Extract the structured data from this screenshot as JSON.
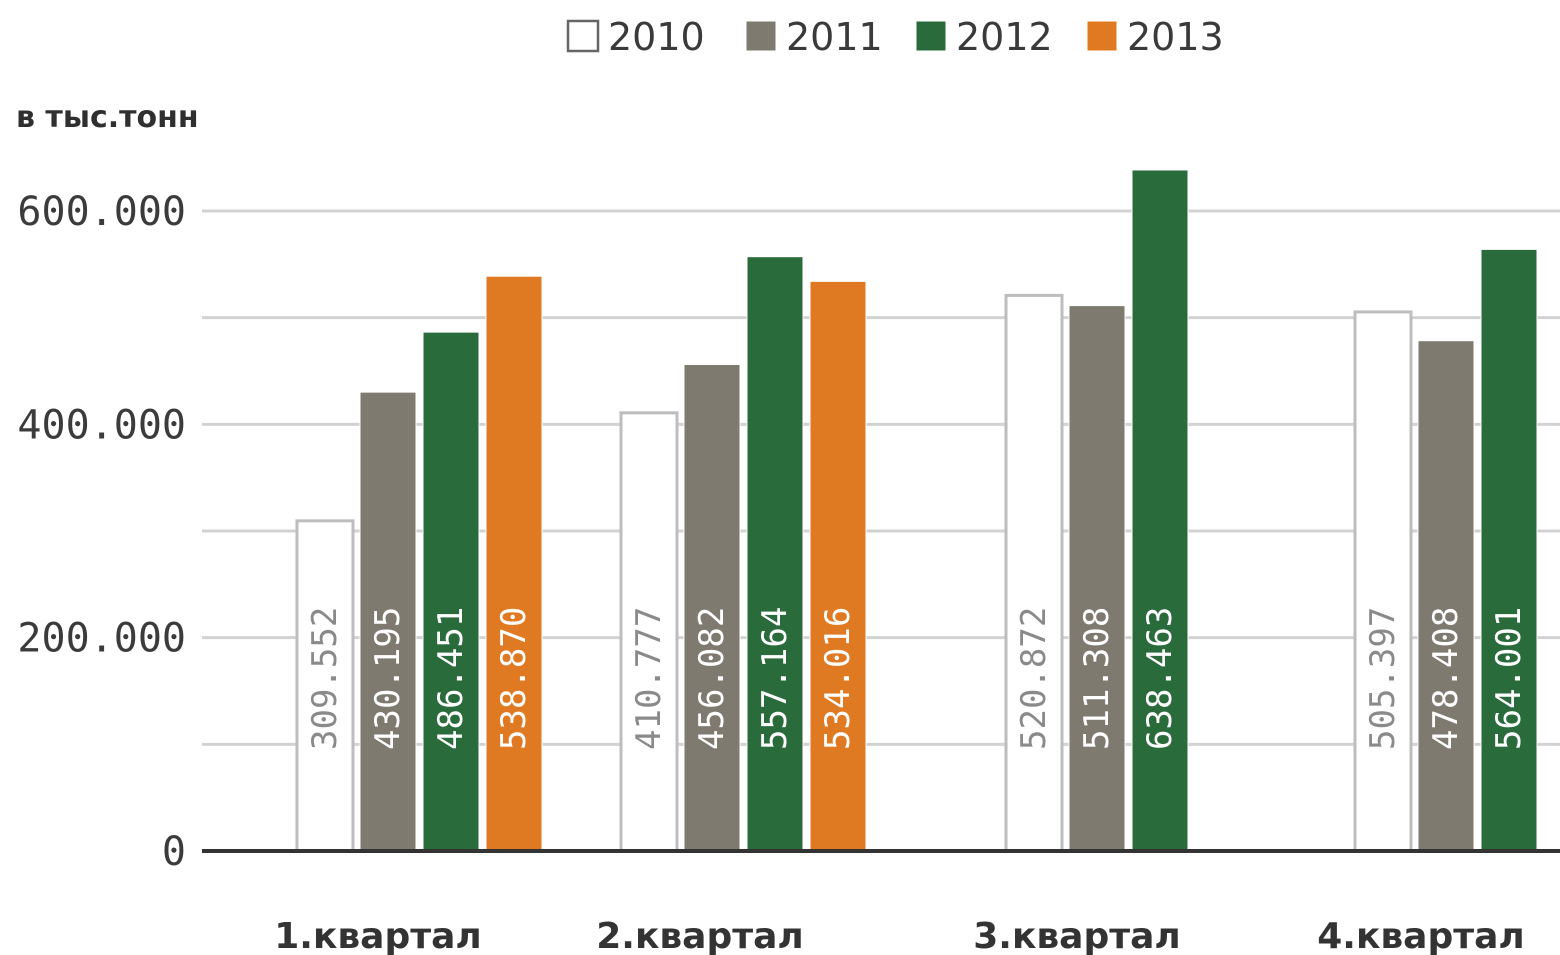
{
  "chart_data": {
    "type": "bar",
    "ylabel": "в тыс.тонн",
    "ylim": [
      0,
      600000
    ],
    "yticks": [
      0,
      200000,
      400000,
      600000
    ],
    "ytick_labels": [
      "0",
      "200.000",
      "400.000",
      "600.000"
    ],
    "grid": true,
    "legend_position": "top-center",
    "categories": [
      "1.квартал",
      "2.квартал",
      "3.квартал",
      "4.квартал"
    ],
    "series": [
      {
        "name": "2010",
        "color": "#ffffff",
        "label_color": "#8a8a8a",
        "values": [
          309552,
          410777,
          520872,
          505397
        ],
        "labels": [
          "309.552",
          "410.777",
          "520.872",
          "505.397"
        ]
      },
      {
        "name": "2011",
        "color": "#7e7a70",
        "label_color": "#ffffff",
        "values": [
          430195,
          456082,
          511308,
          478408
        ],
        "labels": [
          "430.195",
          "456.082",
          "511.308",
          "478.408"
        ]
      },
      {
        "name": "2012",
        "color": "#2a6b3c",
        "label_color": "#ffffff",
        "values": [
          486451,
          557164,
          638463,
          564001
        ],
        "labels": [
          "486.451",
          "557.164",
          "638.463",
          "564.001"
        ]
      },
      {
        "name": "2013",
        "color": "#e07a22",
        "label_color": "#ffffff",
        "values": [
          538870,
          534016,
          null,
          null
        ],
        "labels": [
          "538.870",
          "534.016",
          "",
          ""
        ]
      }
    ]
  }
}
